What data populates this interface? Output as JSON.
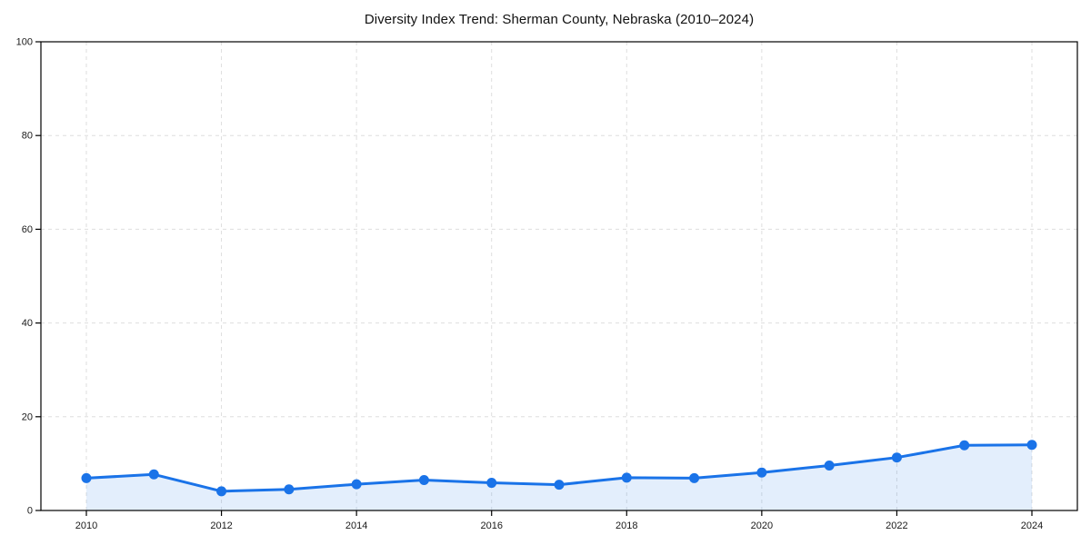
{
  "page": {
    "background": "#ffffff"
  },
  "chart_data": {
    "type": "line",
    "title": "Diversity Index Trend: Sherman County, Nebraska (2010–2024)",
    "x": [
      2010,
      2011,
      2012,
      2013,
      2014,
      2015,
      2016,
      2017,
      2018,
      2019,
      2020,
      2021,
      2022,
      2023,
      2024
    ],
    "values": [
      6.9,
      7.7,
      4.1,
      4.5,
      5.6,
      6.5,
      5.9,
      5.5,
      7.0,
      6.9,
      8.1,
      9.6,
      11.3,
      13.9,
      14.0
    ],
    "xlabel": "",
    "ylabel": "",
    "ylim": [
      0,
      100
    ],
    "yticks": [
      0,
      20,
      40,
      60,
      80,
      100
    ],
    "xticks": [
      2010,
      2012,
      2014,
      2016,
      2018,
      2020,
      2022,
      2024
    ],
    "grid": true,
    "grid_style": "dashed",
    "legend": false,
    "area_fill": true,
    "marker": "circle",
    "colors": {
      "line": "#1a73e8",
      "marker": "#1a73e8",
      "fill": "#1a73e8",
      "fill_opacity": 0.12,
      "grid": "#dedede",
      "axis": "#000000",
      "tick_text": "#1a1a1a",
      "title_text": "#111111"
    }
  }
}
